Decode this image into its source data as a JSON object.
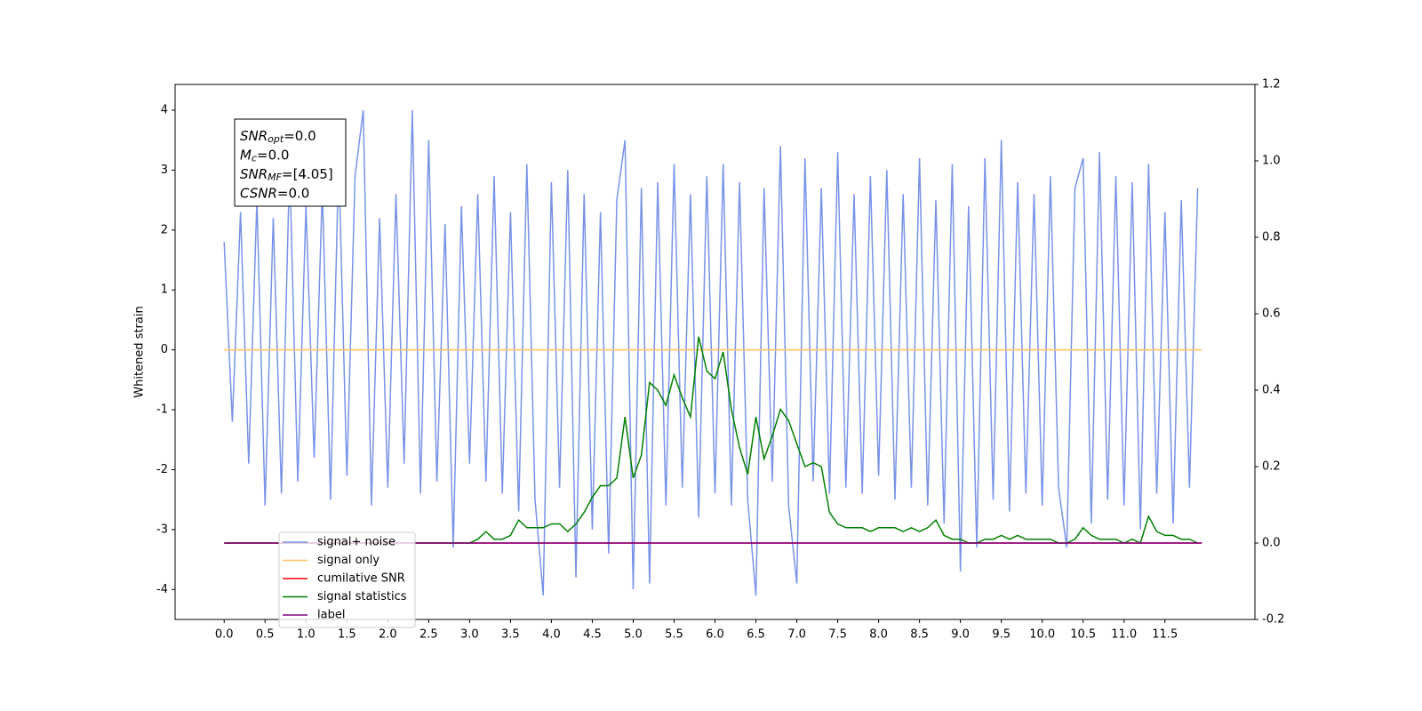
{
  "chart_data": {
    "type": "line",
    "ylabel": "Whitened strain",
    "xlim": [
      -0.6,
      12.6
    ],
    "ylim": [
      -4.5,
      4.43
    ],
    "y2lim": [
      -0.2,
      1.2
    ],
    "xticks": [
      {
        "value": 0,
        "label": "0.0"
      },
      0.5,
      {
        "value": 1,
        "label": "1.0"
      },
      1.5,
      {
        "value": 2,
        "label": "2.0"
      },
      2.5,
      {
        "value": 3,
        "label": "3.0"
      },
      3.5,
      {
        "value": 4,
        "label": "4.0"
      },
      4.5,
      {
        "value": 5,
        "label": "5.0"
      },
      5.5,
      {
        "value": 6,
        "label": "6.0"
      },
      6.5,
      {
        "value": 7,
        "label": "7.0"
      },
      7.5,
      {
        "value": 8,
        "label": "8.0"
      },
      8.5,
      {
        "value": 9,
        "label": "9.0"
      },
      9.5,
      {
        "value": 10,
        "label": "10.0"
      },
      10.5,
      {
        "value": 11,
        "label": "11.0"
      },
      11.5
    ],
    "yticks": [
      -4,
      -3,
      -2,
      -1,
      0,
      1,
      2,
      3,
      4
    ],
    "y2ticks": [
      -0.2,
      {
        "value": 0,
        "label": "0.0"
      },
      0.2,
      0.4,
      0.6,
      0.8,
      {
        "value": 1,
        "label": "1.0"
      },
      1.2
    ],
    "annotation": [
      {
        "main": "SNR",
        "sub": "opt",
        "rest": "=0.0"
      },
      {
        "main": "M",
        "sub": "c",
        "rest": "=0.0"
      },
      {
        "main": "SNR",
        "sub": "MF",
        "rest": "=[4.05]"
      },
      {
        "main": "CSNR",
        "sub": "",
        "rest": "=0.0"
      }
    ],
    "x": [
      0,
      0.1,
      0.2,
      0.3,
      0.4,
      0.5,
      0.6,
      0.7,
      0.8,
      0.9,
      1,
      1.1,
      1.2,
      1.3,
      1.4,
      1.5,
      1.6,
      1.7,
      1.8,
      1.9,
      2,
      2.1,
      2.2,
      2.3,
      2.4,
      2.5,
      2.6,
      2.7,
      2.8,
      2.9,
      3,
      3.1,
      3.2,
      3.3,
      3.4,
      3.5,
      3.6,
      3.7,
      3.8,
      3.9,
      4,
      4.1,
      4.2,
      4.3,
      4.4,
      4.5,
      4.6,
      4.7,
      4.8,
      4.9,
      5,
      5.1,
      5.2,
      5.3,
      5.4,
      5.5,
      5.6,
      5.7,
      5.8,
      5.9,
      6,
      6.1,
      6.2,
      6.3,
      6.4,
      6.5,
      6.6,
      6.7,
      6.8,
      6.9,
      7,
      7.1,
      7.2,
      7.3,
      7.4,
      7.5,
      7.6,
      7.7,
      7.8,
      7.9,
      8,
      8.1,
      8.2,
      8.3,
      8.4,
      8.5,
      8.6,
      8.7,
      8.8,
      8.9,
      9,
      9.1,
      9.2,
      9.3,
      9.4,
      9.5,
      9.6,
      9.7,
      9.8,
      9.9,
      10,
      10.1,
      10.2,
      10.3,
      10.4,
      10.5,
      10.6,
      10.7,
      10.8,
      10.9,
      11,
      11.1,
      11.2,
      11.3,
      11.4,
      11.5,
      11.6,
      11.7,
      11.8,
      11.9
    ],
    "series": [
      {
        "name": "signal+ noise",
        "color": "#7893e8",
        "values": [
          1.8,
          -1.2,
          2.3,
          -1.9,
          2.5,
          -2.6,
          2.2,
          -2.4,
          3.1,
          -2.2,
          2.4,
          -1.8,
          2.7,
          -2.5,
          3.2,
          -2.1,
          2.9,
          4.0,
          -2.6,
          2.2,
          -2.3,
          2.6,
          -1.9,
          4.0,
          -2.4,
          3.5,
          -2.2,
          2.1,
          -3.3,
          2.4,
          -1.9,
          2.6,
          -2.2,
          2.9,
          -2.4,
          2.3,
          -2.7,
          3.1,
          -2.5,
          -4.1,
          2.8,
          -2.3,
          3.0,
          -3.8,
          2.6,
          -3.0,
          2.3,
          -3.4,
          2.5,
          3.5,
          -4.0,
          2.7,
          -3.9,
          2.8,
          -2.6,
          3.1,
          -2.3,
          2.6,
          -2.8,
          2.9,
          -2.4,
          3.1,
          -2.6,
          2.8,
          -2.5,
          -4.1,
          2.7,
          -2.2,
          3.4,
          -2.6,
          -3.9,
          3.2,
          -2.2,
          2.7,
          -2.4,
          3.3,
          -2.3,
          2.6,
          -2.4,
          2.9,
          -2.1,
          3.0,
          -2.5,
          2.6,
          -2.3,
          3.2,
          -2.6,
          2.5,
          -2.9,
          3.1,
          -3.7,
          2.4,
          -3.3,
          3.2,
          -2.5,
          3.5,
          -2.7,
          2.8,
          -2.4,
          2.6,
          -2.6,
          2.9,
          -2.3,
          -3.3,
          2.7,
          3.2,
          -2.9,
          3.3,
          -2.5,
          2.9,
          -2.6,
          2.8,
          -3.0,
          3.1,
          -2.4,
          2.3,
          -2.9,
          2.5,
          -2.3,
          2.7
        ]
      },
      {
        "name": "signal only",
        "color": "#ffc060",
        "x": [
          0,
          11.95
        ],
        "values": [
          0,
          0
        ]
      },
      {
        "name": "cumilative SNR",
        "color": "#ff0000",
        "axis": "y2",
        "x": [
          0,
          11.95
        ],
        "values": [
          0,
          0
        ]
      },
      {
        "name": "signal statistics",
        "color": "#008000",
        "axis": "y2",
        "values": [
          0,
          0,
          0,
          0,
          0,
          0,
          0,
          0,
          0,
          0,
          0,
          0,
          0,
          0,
          0,
          0,
          0,
          0,
          0,
          0,
          0,
          0,
          0,
          0,
          0,
          0,
          0,
          0,
          0,
          0,
          0,
          0.01,
          0.03,
          0.01,
          0.01,
          0.02,
          0.06,
          0.04,
          0.04,
          0.04,
          0.05,
          0.05,
          0.03,
          0.05,
          0.08,
          0.12,
          0.15,
          0.15,
          0.17,
          0.33,
          0.17,
          0.23,
          0.42,
          0.4,
          0.36,
          0.44,
          0.38,
          0.33,
          0.54,
          0.45,
          0.43,
          0.5,
          0.35,
          0.25,
          0.18,
          0.33,
          0.22,
          0.28,
          0.35,
          0.32,
          0.26,
          0.2,
          0.21,
          0.2,
          0.08,
          0.05,
          0.04,
          0.04,
          0.04,
          0.03,
          0.04,
          0.04,
          0.04,
          0.03,
          0.04,
          0.03,
          0.04,
          0.06,
          0.02,
          0.01,
          0.01,
          0,
          0,
          0.01,
          0.01,
          0.02,
          0.01,
          0.02,
          0.01,
          0.01,
          0.01,
          0.01,
          0,
          0,
          0.01,
          0.04,
          0.02,
          0.01,
          0.01,
          0.01,
          0,
          0.01,
          0,
          0.07,
          0.03,
          0.02,
          0.02,
          0.01,
          0.01,
          0
        ]
      },
      {
        "name": "label",
        "color": "#800080",
        "axis": "y2",
        "x": [
          0,
          11.95
        ],
        "values": [
          0,
          0
        ]
      }
    ]
  }
}
